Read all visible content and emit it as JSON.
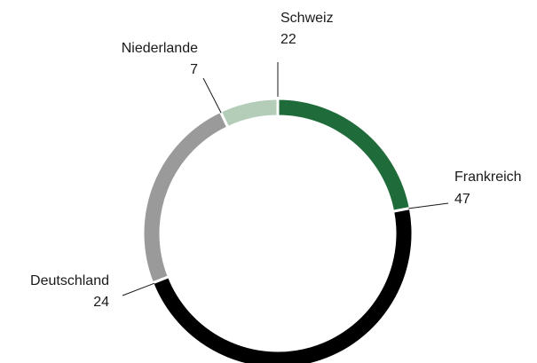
{
  "chart_data": {
    "type": "pie",
    "variant": "donut",
    "title": "",
    "slices": [
      {
        "label": "Schweiz",
        "value": 22,
        "color": "#1f6b3a"
      },
      {
        "label": "Frankreich",
        "value": 47,
        "color": "#000000"
      },
      {
        "label": "Deutschland",
        "value": 24,
        "color": "#9a9a9a"
      },
      {
        "label": "Niederlande",
        "value": 7,
        "color": "#b4cdb9"
      }
    ],
    "start_angle_deg": 0,
    "direction": "clockwise"
  }
}
